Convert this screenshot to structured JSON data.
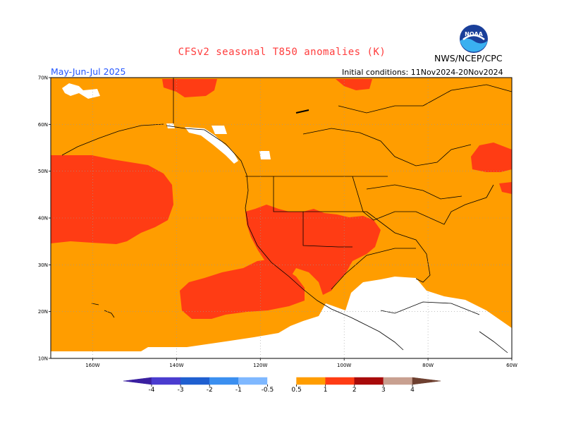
{
  "title": "CFSv2 seasonal T850 anomalies (K)",
  "agency": "NWS/NCEP/CPC",
  "logo_text": "NOAA",
  "period": "May-Jun-Jul 2025",
  "initial_conditions": "Initial conditions: 11Nov2024-20Nov2024",
  "lat_ticks": [
    {
      "value": 70,
      "label": "70N"
    },
    {
      "value": 60,
      "label": "60N"
    },
    {
      "value": 50,
      "label": "50N"
    },
    {
      "value": 40,
      "label": "40N"
    },
    {
      "value": 30,
      "label": "30N"
    },
    {
      "value": 20,
      "label": "20N"
    },
    {
      "value": 10,
      "label": "10N"
    }
  ],
  "lon_ticks": [
    {
      "value": -160,
      "label": "160W"
    },
    {
      "value": -140,
      "label": "140W"
    },
    {
      "value": -120,
      "label": "120W"
    },
    {
      "value": -100,
      "label": "100W"
    },
    {
      "value": -80,
      "label": "80W"
    },
    {
      "value": -60,
      "label": "60W"
    }
  ],
  "map_extent": {
    "lon_min": -170,
    "lon_max": -60,
    "lat_min": 10,
    "lat_max": 70
  },
  "colorbar": {
    "labels": [
      "-4",
      "-3",
      "-2",
      "-1",
      "-0.5",
      "0.5",
      "1",
      "2",
      "3",
      "4"
    ],
    "bins": [
      {
        "from": null,
        "to": -4,
        "color": "#3a1fa0"
      },
      {
        "from": -4,
        "to": -3,
        "color": "#4a3ccf"
      },
      {
        "from": -3,
        "to": -2,
        "color": "#1f5fd0"
      },
      {
        "from": -2,
        "to": -1,
        "color": "#3b8ff0"
      },
      {
        "from": -1,
        "to": -0.5,
        "color": "#7fb8ff"
      },
      {
        "from": -0.5,
        "to": 0.5,
        "color": "#ffffff"
      },
      {
        "from": 0.5,
        "to": 1,
        "color": "#ff9d00"
      },
      {
        "from": 1,
        "to": 2,
        "color": "#ff3c14"
      },
      {
        "from": 2,
        "to": 3,
        "color": "#a80a0a"
      },
      {
        "from": 3,
        "to": 4,
        "color": "#c8a090"
      },
      {
        "from": 4,
        "to": null,
        "color": "#6e4030"
      }
    ]
  }
}
